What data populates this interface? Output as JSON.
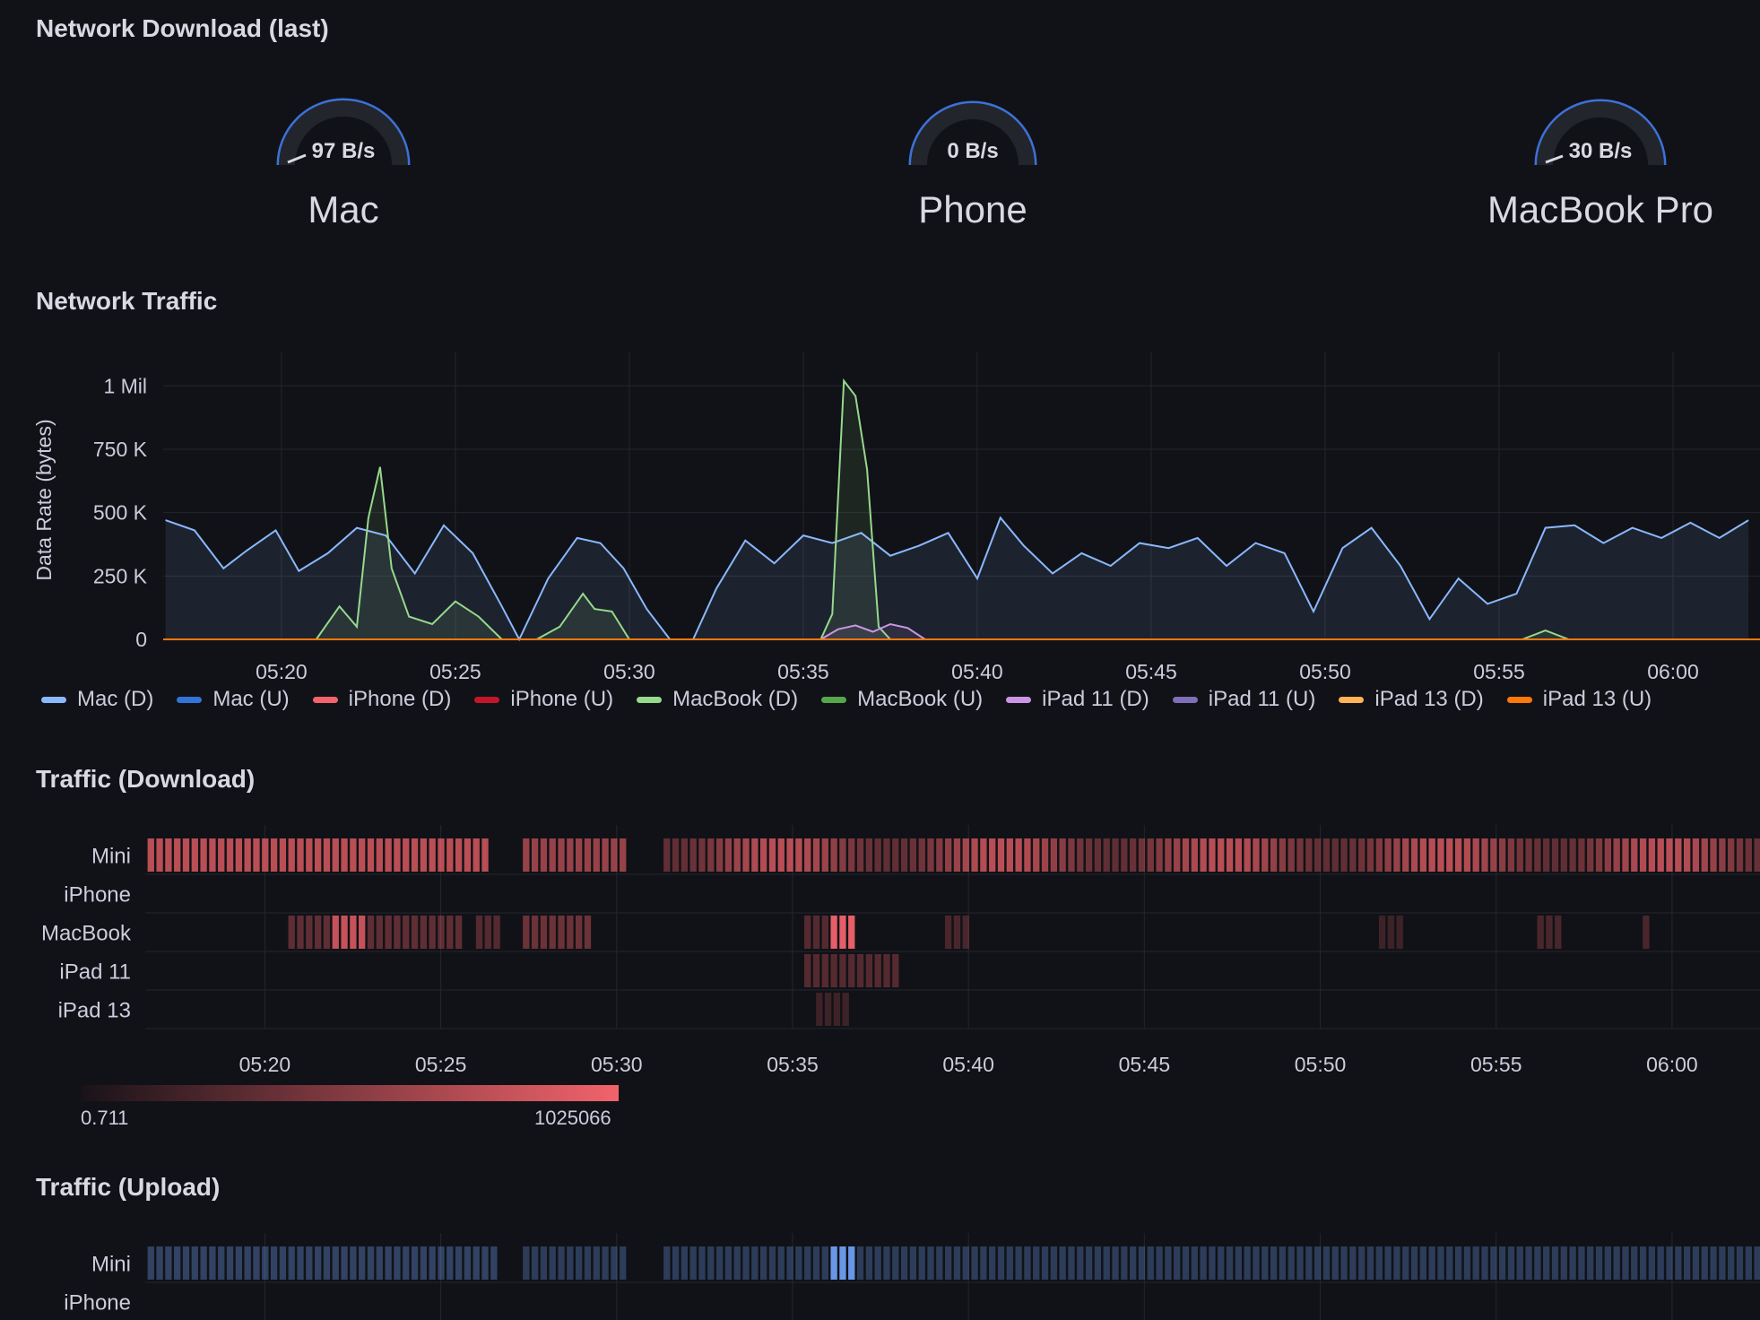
{
  "panels": {
    "gauges_title": "Network Download (last)",
    "traffic_title": "Network Traffic",
    "download_title": "Traffic (Download)",
    "upload_title": "Traffic (Upload)"
  },
  "gauges": [
    {
      "name": "Mac",
      "value": "97 B/s",
      "fraction": 0.04
    },
    {
      "name": "Phone",
      "value": "0 B/s",
      "fraction": 0.0
    },
    {
      "name": "MacBook Pro",
      "value": "30 B/s",
      "fraction": 0.02
    }
  ],
  "colors": {
    "background": "#111217",
    "gauge_arc": "#3d71d9",
    "grid": "#24262d",
    "heat_high": "#f2636b",
    "heat_low": "#181318",
    "upload_high": "#6e9ff2"
  },
  "chart_data": {
    "type": "line",
    "ylabel": "Data Rate (bytes)",
    "ylim": [
      0,
      1100000
    ],
    "yticks": [
      "1 Mil",
      "750 K",
      "500 K",
      "250 K",
      "0"
    ],
    "ytick_values": [
      1000000,
      750000,
      500000,
      250000,
      0
    ],
    "xticks": [
      "05:20",
      "05:25",
      "05:30",
      "05:35",
      "05:40",
      "05:45",
      "05:50",
      "05:55",
      "06:00"
    ],
    "x_range_minutes": [
      "05:16:36",
      "06:02:30"
    ],
    "series": [
      {
        "name": "Mac (D)",
        "color": "#8ab8ff",
        "x": [
          "05:16:40",
          "05:17:30",
          "05:18:20",
          "05:19:00",
          "05:19:50",
          "05:20:30",
          "05:21:20",
          "05:22:10",
          "05:23:00",
          "05:23:50",
          "05:24:40",
          "05:25:30",
          "05:26:20",
          "05:26:50",
          "05:27:40",
          "05:28:30",
          "05:29:10",
          "05:29:50",
          "05:30:30",
          "05:31:10",
          "05:31:50",
          "05:32:30",
          "05:33:20",
          "05:34:10",
          "05:35:00",
          "05:35:50",
          "05:36:40",
          "05:37:30",
          "05:38:20",
          "05:39:10",
          "05:40:00",
          "05:40:40",
          "05:41:20",
          "05:42:10",
          "05:43:00",
          "05:43:50",
          "05:44:40",
          "05:45:30",
          "05:46:20",
          "05:47:10",
          "05:48:00",
          "05:48:50",
          "05:49:40",
          "05:50:30",
          "05:51:20",
          "05:52:10",
          "05:53:00",
          "05:53:50",
          "05:54:40",
          "05:55:30",
          "05:56:20",
          "05:57:10",
          "05:58:00",
          "05:58:50",
          "05:59:40",
          "06:00:30",
          "06:01:20",
          "06:02:10"
        ],
        "values": [
          470000,
          430000,
          280000,
          350000,
          430000,
          270000,
          340000,
          440000,
          410000,
          260000,
          450000,
          340000,
          130000,
          0,
          240000,
          400000,
          380000,
          280000,
          120000,
          0,
          0,
          200000,
          390000,
          300000,
          410000,
          380000,
          420000,
          330000,
          370000,
          420000,
          240000,
          480000,
          370000,
          260000,
          340000,
          290000,
          380000,
          360000,
          400000,
          290000,
          380000,
          340000,
          110000,
          360000,
          440000,
          290000,
          80000,
          240000,
          140000,
          180000,
          440000,
          450000,
          380000,
          440000,
          400000,
          460000,
          400000,
          470000
        ]
      },
      {
        "name": "Mac (U)",
        "color": "#3274d9",
        "values": []
      },
      {
        "name": "iPhone (D)",
        "color": "#f2636b",
        "values": []
      },
      {
        "name": "iPhone (U)",
        "color": "#c4162a",
        "values": []
      },
      {
        "name": "MacBook (D)",
        "color": "#96d98d",
        "x": [
          "05:21:00",
          "05:21:40",
          "05:22:10",
          "05:22:30",
          "05:22:50",
          "05:23:10",
          "05:23:40",
          "05:24:20",
          "05:25:00",
          "05:25:40",
          "05:26:20",
          "05:27:20",
          "05:28:00",
          "05:28:40",
          "05:29:00",
          "05:29:30",
          "05:30:00",
          "05:35:30",
          "05:35:50",
          "05:36:10",
          "05:36:30",
          "05:36:50",
          "05:37:10",
          "05:37:30",
          "05:55:40",
          "05:56:20",
          "05:57:00"
        ],
        "values": [
          0,
          130000,
          50000,
          480000,
          680000,
          280000,
          90000,
          60000,
          150000,
          90000,
          0,
          0,
          50000,
          180000,
          120000,
          110000,
          0,
          0,
          100000,
          1020000,
          960000,
          670000,
          50000,
          0,
          0,
          35000,
          0
        ]
      },
      {
        "name": "MacBook (U)",
        "color": "#56a64b",
        "values": []
      },
      {
        "name": "iPad 11 (D)",
        "color": "#ca95e5",
        "x": [
          "05:35:30",
          "05:36:00",
          "05:36:30",
          "05:37:00",
          "05:37:30",
          "05:38:00",
          "05:38:30"
        ],
        "values": [
          0,
          40000,
          55000,
          30000,
          60000,
          45000,
          0
        ]
      },
      {
        "name": "iPad 11 (U)",
        "color": "#806eb7",
        "values": []
      },
      {
        "name": "iPad 13 (D)",
        "color": "#ffb357",
        "values": []
      },
      {
        "name": "iPad 13 (U)",
        "color": "#ff780a",
        "values": []
      }
    ],
    "grid": true,
    "legend": "bottom"
  },
  "heatmap_download": {
    "rows": [
      "Mini",
      "iPhone",
      "MacBook",
      "iPad 11",
      "iPad 13"
    ],
    "xticks": [
      "05:20",
      "05:25",
      "05:30",
      "05:35",
      "05:40",
      "05:45",
      "05:50",
      "05:55",
      "06:00"
    ],
    "scale_min": "0.711",
    "scale_max": "1025066"
  },
  "heatmap_upload": {
    "rows": [
      "Mini",
      "iPhone"
    ]
  }
}
